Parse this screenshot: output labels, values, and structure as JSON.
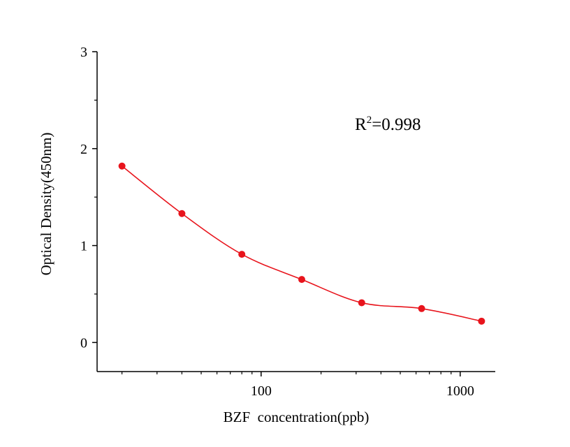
{
  "chart_data": {
    "type": "scatter",
    "title": "",
    "xlabel": "BZF  concentration(ppb)",
    "ylabel": "Optical Density(450nm)",
    "x_scale": "log",
    "xlim": [
      15,
      1500
    ],
    "ylim": [
      -0.3,
      3
    ],
    "x_ticks": [
      {
        "value": 100,
        "label": "100"
      },
      {
        "value": 1000,
        "label": "1000"
      }
    ],
    "y_ticks": [
      {
        "value": 0,
        "label": "0"
      },
      {
        "value": 1,
        "label": "1"
      },
      {
        "value": 2,
        "label": "2"
      },
      {
        "value": 3,
        "label": "3"
      }
    ],
    "grid": false,
    "annotation": {
      "base": "R",
      "sup": "2",
      "rest": "=0.998"
    },
    "series": [
      {
        "x": [
          20,
          40,
          80,
          160,
          320,
          640,
          1280
        ],
        "y": [
          1.82,
          1.33,
          0.91,
          0.65,
          0.41,
          0.35,
          0.22
        ],
        "color": "#e8141c",
        "fit_line": true
      }
    ]
  }
}
